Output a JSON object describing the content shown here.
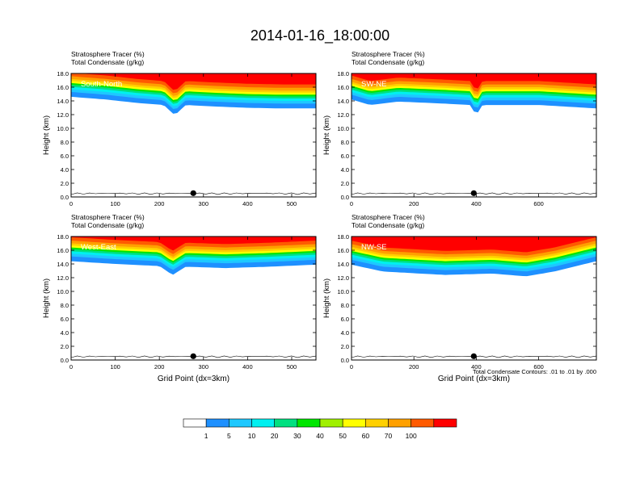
{
  "title": "2014-01-16_18:00:00",
  "contour_note": "Total Condensate Contours: .01 to .01 by .000",
  "colorbar": {
    "labels": [
      "1",
      "5",
      "10",
      "20",
      "30",
      "40",
      "50",
      "60",
      "70",
      "100"
    ],
    "colors": [
      "#ffffff",
      "#1e90ff",
      "#1ec8ff",
      "#00f0f0",
      "#00e080",
      "#00e600",
      "#a0f000",
      "#ffff00",
      "#ffd000",
      "#ffa000",
      "#ff5a00",
      "#ff0000"
    ]
  },
  "chart_data": [
    {
      "type": "heatmap",
      "panel": "top-left",
      "label": "South-North",
      "subtitle_line1": "Stratosphere Tracer   (%)",
      "subtitle_line2": "Total Condensate   (g/kg)",
      "ylabel": "Height (km)",
      "xlabel": "",
      "xlim": [
        0,
        555
      ],
      "xticks": [
        "0",
        "100",
        "200",
        "300",
        "400",
        "500"
      ],
      "ylim": [
        0,
        18
      ],
      "yticks": [
        "0.0",
        "2.0",
        "4.0",
        "6.0",
        "8.0",
        "10.0",
        "12.0",
        "14.0",
        "16.0",
        "18.0"
      ],
      "marker_x": 277,
      "tropopause_km": [
        [
          0,
          16.2
        ],
        [
          80,
          15.8
        ],
        [
          150,
          15.3
        ],
        [
          210,
          15.0
        ],
        [
          235,
          13.5
        ],
        [
          260,
          15.0
        ],
        [
          320,
          14.8
        ],
        [
          400,
          14.6
        ],
        [
          480,
          14.5
        ],
        [
          555,
          14.5
        ]
      ]
    },
    {
      "type": "heatmap",
      "panel": "top-right",
      "label": "SW-NE",
      "subtitle_line1": "Stratosphere Tracer   (%)",
      "subtitle_line2": "Total Condensate   (g/kg)",
      "ylabel": "Height (km)",
      "xlabel": "",
      "xlim": [
        0,
        785
      ],
      "xticks": [
        "0",
        "200",
        "400",
        "600"
      ],
      "ylim": [
        0,
        18
      ],
      "yticks": [
        "0.0",
        "2.0",
        "4.0",
        "6.0",
        "8.0",
        "10.0",
        "12.0",
        "14.0",
        "16.0",
        "18.0"
      ],
      "marker_x": 392,
      "tropopause_km": [
        [
          0,
          15.8
        ],
        [
          60,
          15.0
        ],
        [
          150,
          15.5
        ],
        [
          300,
          15.2
        ],
        [
          380,
          15.0
        ],
        [
          400,
          13.5
        ],
        [
          420,
          15.0
        ],
        [
          600,
          15.0
        ],
        [
          785,
          14.5
        ]
      ]
    },
    {
      "type": "heatmap",
      "panel": "bottom-left",
      "label": "West-East",
      "subtitle_line1": "Stratosphere Tracer   (%)",
      "subtitle_line2": "Total Condensate   (g/kg)",
      "ylabel": "Height (km)",
      "xlabel": "Grid Point (dx=3km)",
      "xlim": [
        0,
        555
      ],
      "xticks": [
        "0",
        "100",
        "200",
        "300",
        "400",
        "500"
      ],
      "ylim": [
        0,
        18
      ],
      "yticks": [
        "0.0",
        "2.0",
        "4.0",
        "6.0",
        "8.0",
        "10.0",
        "12.0",
        "14.0",
        "16.0",
        "18.0"
      ],
      "marker_x": 277,
      "tropopause_km": [
        [
          0,
          16.0
        ],
        [
          100,
          15.6
        ],
        [
          200,
          15.3
        ],
        [
          230,
          14.0
        ],
        [
          260,
          15.2
        ],
        [
          350,
          15.0
        ],
        [
          450,
          15.2
        ],
        [
          555,
          15.5
        ]
      ]
    },
    {
      "type": "heatmap",
      "panel": "bottom-right",
      "label": "NW-SE",
      "subtitle_line1": "Stratosphere Tracer   (%)",
      "subtitle_line2": "Total Condensate   (g/kg)",
      "ylabel": "Height (km)",
      "xlabel": "Grid Point (dx=3km)",
      "xlim": [
        0,
        785
      ],
      "xticks": [
        "0",
        "200",
        "400",
        "600"
      ],
      "ylim": [
        0,
        18
      ],
      "yticks": [
        "0.0",
        "2.0",
        "4.0",
        "6.0",
        "8.0",
        "10.0",
        "12.0",
        "14.0",
        "16.0",
        "18.0"
      ],
      "marker_x": 392,
      "tropopause_km": [
        [
          0,
          15.5
        ],
        [
          100,
          14.5
        ],
        [
          300,
          14.0
        ],
        [
          450,
          14.2
        ],
        [
          560,
          13.8
        ],
        [
          650,
          14.5
        ],
        [
          785,
          16.0
        ]
      ]
    }
  ]
}
